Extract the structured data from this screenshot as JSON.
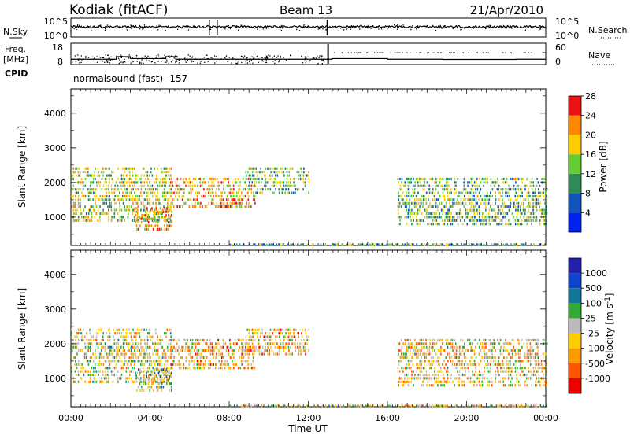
{
  "header": {
    "station": "Kodiak (fitACF)",
    "beam": "Beam 13",
    "date": "21/Apr/2010"
  },
  "noise_panel": {
    "left_label": "N.Sky",
    "right_label": "N.Search",
    "left_ticks": [
      "10^5",
      "10^0"
    ],
    "right_ticks": [
      "10^5",
      "10^0"
    ]
  },
  "freq_panel": {
    "left_label_line1": "Freq.",
    "left_label_line2": "[MHz]",
    "left_ticks": [
      "18",
      "8"
    ],
    "right_label": "Nave",
    "right_ticks": [
      "60",
      "0"
    ],
    "cpid_label": "CPID",
    "cpid_value": "normalsound (fast) -157",
    "freq_steps": [
      {
        "t": 0.0,
        "mhz": 10.5
      },
      {
        "t": 2.3,
        "mhz": 11.7
      },
      {
        "t": 3.0,
        "mhz": 10.8
      },
      {
        "t": 4.8,
        "mhz": 11.7
      },
      {
        "t": 5.3,
        "mhz": 10.5
      },
      {
        "t": 13.2,
        "mhz": 10.8
      },
      {
        "t": 16.0,
        "mhz": 10.5
      },
      {
        "t": 18.8,
        "mhz": 10.4
      },
      {
        "t": 22.5,
        "mhz": 10.5
      },
      {
        "t": 24.0,
        "mhz": 10.5
      }
    ]
  },
  "power_panel": {
    "ylabel": "Slant Range [km]",
    "yticks": [
      "1000",
      "2000",
      "3000",
      "4000"
    ],
    "colorbar_label": "Power [dB]",
    "colorbar_ticks": [
      "4",
      "8",
      "12",
      "16",
      "20",
      "24",
      "28"
    ],
    "colors": [
      "#0022ee",
      "#1155bb",
      "#2e8b57",
      "#66cc33",
      "#ffcc00",
      "#ff8800",
      "#ee1111"
    ]
  },
  "velocity_panel": {
    "ylabel": "Slant Range [km]",
    "yticks": [
      "1000",
      "2000",
      "3000",
      "4000"
    ],
    "colorbar_label": "Velocity [m s^-1]",
    "colorbar_ticks": [
      "-1000",
      "-500",
      "-100",
      "-25",
      "25",
      "100",
      "500",
      "1000"
    ],
    "colors": [
      "#ee0000",
      "#ff5500",
      "#ff9900",
      "#ffcc00",
      "#bbbbbb",
      "#33aa33",
      "#117799",
      "#1144cc",
      "#2222aa"
    ]
  },
  "x_axis": {
    "label": "Time UT",
    "ticks": [
      "00:00",
      "04:00",
      "08:00",
      "12:00",
      "16:00",
      "20:00",
      "00:00"
    ]
  },
  "chart_data": {
    "type": "heatmap",
    "title": "Kodiak (fitACF) Beam 13 21/Apr/2010",
    "xlabel": "Time UT",
    "ylabel": "Slant Range [km]",
    "xlim_hours": [
      0,
      24
    ],
    "ylim_km": [
      180,
      4700
    ],
    "series": [
      {
        "name": "Power [dB]",
        "clusters": [
          {
            "t0": 0.0,
            "t1": 5.0,
            "r0": 900,
            "r1": 2500,
            "level": 0.55
          },
          {
            "t0": 3.2,
            "t1": 5.1,
            "r0": 650,
            "r1": 1300,
            "level": 0.7
          },
          {
            "t0": 5.0,
            "t1": 9.3,
            "r0": 1300,
            "r1": 2200,
            "level": 0.7
          },
          {
            "t0": 7.5,
            "t1": 8.3,
            "r0": 1300,
            "r1": 1600,
            "level": 0.9
          },
          {
            "t0": 8.8,
            "t1": 12.0,
            "r0": 1700,
            "r1": 2500,
            "level": 0.45
          },
          {
            "t0": 16.5,
            "t1": 24.0,
            "r0": 800,
            "r1": 2200,
            "level": 0.45
          },
          {
            "t0": 8.0,
            "t1": 24.0,
            "r0": 200,
            "r1": 300,
            "level": 0.4
          }
        ]
      },
      {
        "name": "Velocity",
        "clusters": [
          {
            "t0": 0.0,
            "t1": 5.0,
            "r0": 900,
            "r1": 2500,
            "level": 0.45
          },
          {
            "t0": 3.2,
            "t1": 5.1,
            "r0": 650,
            "r1": 1300,
            "level": 0.55
          },
          {
            "t0": 5.0,
            "t1": 9.3,
            "r0": 1300,
            "r1": 2200,
            "level": 0.35
          },
          {
            "t0": 8.8,
            "t1": 12.0,
            "r0": 1700,
            "r1": 2500,
            "level": 0.35
          },
          {
            "t0": 16.5,
            "t1": 24.0,
            "r0": 800,
            "r1": 2200,
            "level": 0.4
          },
          {
            "t0": 8.0,
            "t1": 24.0,
            "r0": 200,
            "r1": 300,
            "level": 0.45
          }
        ]
      }
    ],
    "grid": false,
    "legend": "colorbar-right"
  }
}
